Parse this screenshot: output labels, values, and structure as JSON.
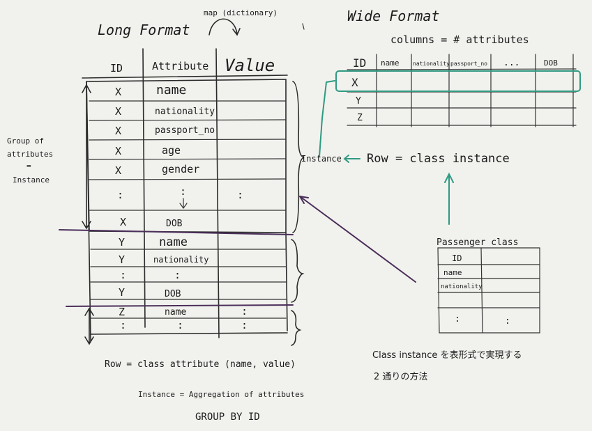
{
  "long_format": {
    "title": "Long Format",
    "map_label": "map (dictionary)",
    "headers": [
      "ID",
      "Attribute",
      "Value"
    ],
    "rows": [
      {
        "id": "X",
        "attr": "name",
        "value": ""
      },
      {
        "id": "X",
        "attr": "nationality",
        "value": ""
      },
      {
        "id": "X",
        "attr": "passport_no",
        "value": ""
      },
      {
        "id": "X",
        "attr": "age",
        "value": ""
      },
      {
        "id": "X",
        "attr": "gender",
        "value": ""
      },
      {
        "id": ":",
        "attr": ":",
        "value": ":"
      },
      {
        "id": "X",
        "attr": "DOB",
        "value": ""
      },
      {
        "id": "Y",
        "attr": "name",
        "value": ""
      },
      {
        "id": "Y",
        "attr": "nationality",
        "value": ""
      },
      {
        "id": ":",
        "attr": ":",
        "value": ""
      },
      {
        "id": "Y",
        "attr": "DOB",
        "value": ""
      },
      {
        "id": "Z",
        "attr": "name",
        "value": ":"
      },
      {
        "id": ":",
        "attr": ":",
        "value": ":"
      }
    ],
    "group_note": [
      "Group of",
      "attributes",
      "=",
      "Instance"
    ],
    "row_note": "Row = class attribute (name, value)",
    "instance_note": "Instance = Aggregation of attributes",
    "groupby_note": "GROUP BY ID"
  },
  "wide_format": {
    "title": "Wide Format",
    "columns_note": "columns = # attributes",
    "headers": [
      "ID",
      "name",
      "nationality",
      "passport_no",
      "...",
      "DOB"
    ],
    "row_ids": [
      "X",
      "Y",
      "Z"
    ]
  },
  "instance_label": "Instance",
  "row_instance_note": "Row = class instance",
  "passenger_class": {
    "title": "Passenger class",
    "rows": [
      {
        "left": "ID",
        "right": ""
      },
      {
        "left": "name",
        "right": ""
      },
      {
        "left": "nationality",
        "right": ""
      },
      {
        "left": "",
        "right": ""
      },
      {
        "left": ":",
        "right": ":"
      }
    ]
  },
  "japanese_note": [
    "Class instance を表形式で実現する",
    "2 通りの方法"
  ],
  "colors": {
    "board": "#f1f2ee",
    "ink": "#2a2a2a",
    "purple": "#4b2e5a",
    "teal": "#2f9a82"
  }
}
